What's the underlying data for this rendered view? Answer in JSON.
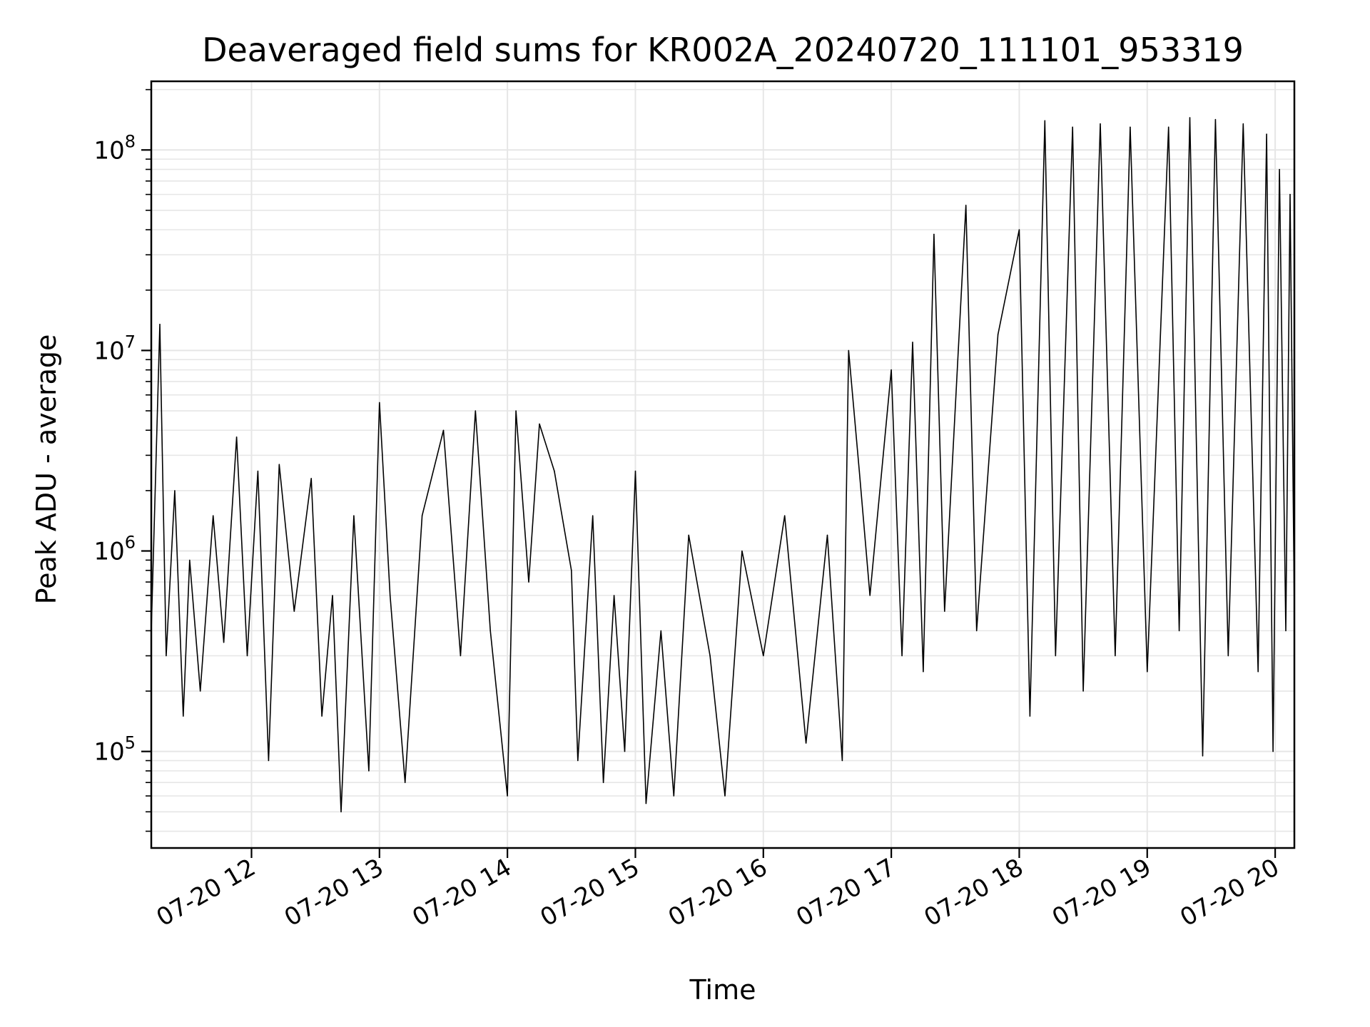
{
  "chart_data": {
    "type": "line",
    "title": "Deaveraged field sums for KR002A_20240720_111101_953319",
    "xlabel": "Time",
    "ylabel": "Peak ADU - average",
    "y_scale": "log",
    "ylim": [
      33000,
      220000000
    ],
    "xlim": [
      "2024-07-20T11:13",
      "2024-07-20T20:09"
    ],
    "grid": true,
    "line_color": "#000000",
    "y_ticks": [
      {
        "base": "10",
        "exp": "5",
        "value": 100000
      },
      {
        "base": "10",
        "exp": "6",
        "value": 1000000
      },
      {
        "base": "10",
        "exp": "7",
        "value": 10000000
      },
      {
        "base": "10",
        "exp": "8",
        "value": 100000000
      }
    ],
    "x_ticks": [
      {
        "label": "07-20 12",
        "time": "2024-07-20T12:00"
      },
      {
        "label": "07-20 13",
        "time": "2024-07-20T13:00"
      },
      {
        "label": "07-20 14",
        "time": "2024-07-20T14:00"
      },
      {
        "label": "07-20 15",
        "time": "2024-07-20T15:00"
      },
      {
        "label": "07-20 16",
        "time": "2024-07-20T16:00"
      },
      {
        "label": "07-20 17",
        "time": "2024-07-20T17:00"
      },
      {
        "label": "07-20 18",
        "time": "2024-07-20T18:00"
      },
      {
        "label": "07-20 19",
        "time": "2024-07-20T19:00"
      },
      {
        "label": "07-20 20",
        "time": "2024-07-20T20:00"
      }
    ],
    "series": [
      {
        "points": [
          [
            "2024-07-20T11:13",
            400000
          ],
          [
            "2024-07-20T11:17",
            13500000
          ],
          [
            "2024-07-20T11:20",
            300000
          ],
          [
            "2024-07-20T11:24",
            2000000
          ],
          [
            "2024-07-20T11:28",
            150000
          ],
          [
            "2024-07-20T11:31",
            900000
          ],
          [
            "2024-07-20T11:36",
            200000
          ],
          [
            "2024-07-20T11:42",
            1500000
          ],
          [
            "2024-07-20T11:47",
            350000
          ],
          [
            "2024-07-20T11:53",
            3700000
          ],
          [
            "2024-07-20T11:58",
            300000
          ],
          [
            "2024-07-20T12:03",
            2500000
          ],
          [
            "2024-07-20T12:08",
            90000
          ],
          [
            "2024-07-20T12:13",
            2700000
          ],
          [
            "2024-07-20T12:20",
            500000
          ],
          [
            "2024-07-20T12:28",
            2300000
          ],
          [
            "2024-07-20T12:33",
            150000
          ],
          [
            "2024-07-20T12:38",
            600000
          ],
          [
            "2024-07-20T12:42",
            50000
          ],
          [
            "2024-07-20T12:48",
            1500000
          ],
          [
            "2024-07-20T12:55",
            80000
          ],
          [
            "2024-07-20T13:00",
            5500000
          ],
          [
            "2024-07-20T13:05",
            600000
          ],
          [
            "2024-07-20T13:12",
            70000
          ],
          [
            "2024-07-20T13:20",
            1500000
          ],
          [
            "2024-07-20T13:30",
            4000000
          ],
          [
            "2024-07-20T13:38",
            300000
          ],
          [
            "2024-07-20T13:45",
            5000000
          ],
          [
            "2024-07-20T13:52",
            400000
          ],
          [
            "2024-07-20T14:00",
            60000
          ],
          [
            "2024-07-20T14:04",
            5000000
          ],
          [
            "2024-07-20T14:10",
            700000
          ],
          [
            "2024-07-20T14:15",
            4300000
          ],
          [
            "2024-07-20T14:22",
            2500000
          ],
          [
            "2024-07-20T14:30",
            800000
          ],
          [
            "2024-07-20T14:33",
            90000
          ],
          [
            "2024-07-20T14:40",
            1500000
          ],
          [
            "2024-07-20T14:45",
            70000
          ],
          [
            "2024-07-20T14:50",
            600000
          ],
          [
            "2024-07-20T14:55",
            100000
          ],
          [
            "2024-07-20T15:00",
            2500000
          ],
          [
            "2024-07-20T15:05",
            55000
          ],
          [
            "2024-07-20T15:12",
            400000
          ],
          [
            "2024-07-20T15:18",
            60000
          ],
          [
            "2024-07-20T15:25",
            1200000
          ],
          [
            "2024-07-20T15:35",
            300000
          ],
          [
            "2024-07-20T15:42",
            60000
          ],
          [
            "2024-07-20T15:50",
            1000000
          ],
          [
            "2024-07-20T16:00",
            300000
          ],
          [
            "2024-07-20T16:10",
            1500000
          ],
          [
            "2024-07-20T16:20",
            110000
          ],
          [
            "2024-07-20T16:30",
            1200000
          ],
          [
            "2024-07-20T16:37",
            90000
          ],
          [
            "2024-07-20T16:40",
            10000000
          ],
          [
            "2024-07-20T16:45",
            2500000
          ],
          [
            "2024-07-20T16:50",
            600000
          ],
          [
            "2024-07-20T17:00",
            8000000
          ],
          [
            "2024-07-20T17:05",
            300000
          ],
          [
            "2024-07-20T17:10",
            11000000
          ],
          [
            "2024-07-20T17:15",
            250000
          ],
          [
            "2024-07-20T17:20",
            38000000
          ],
          [
            "2024-07-20T17:25",
            500000
          ],
          [
            "2024-07-20T17:35",
            53000000
          ],
          [
            "2024-07-20T17:40",
            400000
          ],
          [
            "2024-07-20T17:50",
            12000000
          ],
          [
            "2024-07-20T18:00",
            40000000
          ],
          [
            "2024-07-20T18:05",
            150000
          ],
          [
            "2024-07-20T18:12",
            140000000
          ],
          [
            "2024-07-20T18:17",
            300000
          ],
          [
            "2024-07-20T18:25",
            130000000
          ],
          [
            "2024-07-20T18:30",
            200000
          ],
          [
            "2024-07-20T18:38",
            135000000
          ],
          [
            "2024-07-20T18:45",
            300000
          ],
          [
            "2024-07-20T18:52",
            130000000
          ],
          [
            "2024-07-20T19:00",
            250000
          ],
          [
            "2024-07-20T19:10",
            130000000
          ],
          [
            "2024-07-20T19:15",
            400000
          ],
          [
            "2024-07-20T19:20",
            145000000
          ],
          [
            "2024-07-20T19:26",
            95000
          ],
          [
            "2024-07-20T19:32",
            142000000
          ],
          [
            "2024-07-20T19:38",
            300000
          ],
          [
            "2024-07-20T19:45",
            135000000
          ],
          [
            "2024-07-20T19:52",
            250000
          ],
          [
            "2024-07-20T19:56",
            120000000
          ],
          [
            "2024-07-20T19:59",
            100000
          ],
          [
            "2024-07-20T20:02",
            80000000
          ],
          [
            "2024-07-20T20:05",
            400000
          ],
          [
            "2024-07-20T20:07",
            60000000
          ],
          [
            "2024-07-20T20:09",
            500000
          ]
        ]
      }
    ]
  }
}
